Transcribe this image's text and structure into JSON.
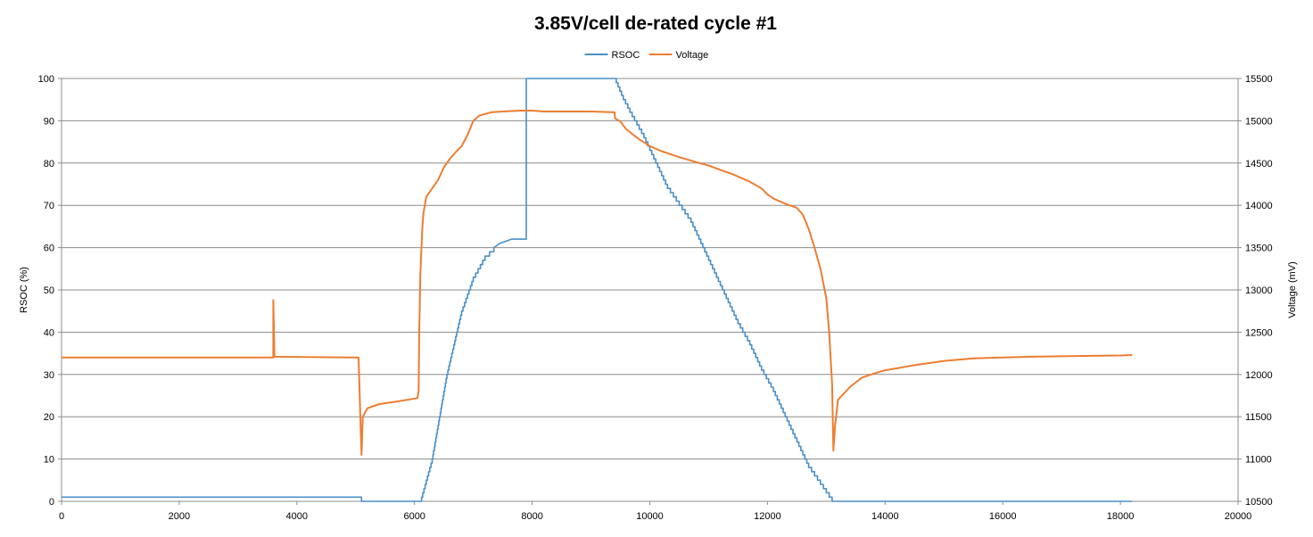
{
  "chart_data": {
    "type": "line",
    "title": "3.85V/cell de-rated cycle #1",
    "xlabel": "",
    "ylabel": "RSOC (%)",
    "y2label": "Voltage (mV)",
    "xlim": [
      0,
      20000
    ],
    "ylim": [
      0,
      100
    ],
    "y2lim": [
      10500,
      15500
    ],
    "x_ticks": [
      "0",
      "2000",
      "4000",
      "6000",
      "8000",
      "10000",
      "12000",
      "14000",
      "16000",
      "18000",
      "20000"
    ],
    "y_ticks": [
      "0",
      "10",
      "20",
      "30",
      "40",
      "50",
      "60",
      "70",
      "80",
      "90",
      "100"
    ],
    "y2_ticks": [
      "10500",
      "11000",
      "11500",
      "12000",
      "12500",
      "13000",
      "13500",
      "14000",
      "14500",
      "15000",
      "15500"
    ],
    "grid": "horizontal",
    "legend_position": "top-center",
    "series": [
      {
        "name": "RSOC",
        "axis": "left",
        "color": "#4a90c8",
        "step": true,
        "points": [
          [
            0,
            1
          ],
          [
            5100,
            1
          ],
          [
            5100,
            0
          ],
          [
            6100,
            0
          ],
          [
            6300,
            10
          ],
          [
            6550,
            30
          ],
          [
            6800,
            45
          ],
          [
            7000,
            53
          ],
          [
            7200,
            58
          ],
          [
            7350,
            60
          ],
          [
            7450,
            61
          ],
          [
            7650,
            62
          ],
          [
            7900,
            62
          ],
          [
            7900,
            100
          ],
          [
            9400,
            100
          ],
          [
            9550,
            95
          ],
          [
            9700,
            91
          ],
          [
            9900,
            86
          ],
          [
            10100,
            80
          ],
          [
            10300,
            74
          ],
          [
            10500,
            70
          ],
          [
            10700,
            66
          ],
          [
            10900,
            60
          ],
          [
            11100,
            54
          ],
          [
            11300,
            48
          ],
          [
            11500,
            42
          ],
          [
            11700,
            37
          ],
          [
            11900,
            31
          ],
          [
            12100,
            26
          ],
          [
            12300,
            20
          ],
          [
            12500,
            14
          ],
          [
            12700,
            8
          ],
          [
            12900,
            4
          ],
          [
            13100,
            0
          ],
          [
            18200,
            0
          ]
        ]
      },
      {
        "name": "Voltage",
        "axis": "right",
        "color": "#ed7d31",
        "step": false,
        "points": [
          [
            0,
            12200
          ],
          [
            3600,
            12200
          ],
          [
            3600,
            12880
          ],
          [
            3620,
            12210
          ],
          [
            5000,
            12200
          ],
          [
            5050,
            12200
          ],
          [
            5070,
            11700
          ],
          [
            5100,
            11050
          ],
          [
            5120,
            11500
          ],
          [
            5200,
            11600
          ],
          [
            5400,
            11650
          ],
          [
            5700,
            11680
          ],
          [
            6050,
            11720
          ],
          [
            6070,
            11800
          ],
          [
            6080,
            12500
          ],
          [
            6100,
            13200
          ],
          [
            6130,
            13700
          ],
          [
            6150,
            13900
          ],
          [
            6200,
            14100
          ],
          [
            6300,
            14200
          ],
          [
            6400,
            14300
          ],
          [
            6500,
            14450
          ],
          [
            6600,
            14550
          ],
          [
            6700,
            14630
          ],
          [
            6800,
            14700
          ],
          [
            6900,
            14830
          ],
          [
            7000,
            15000
          ],
          [
            7100,
            15060
          ],
          [
            7300,
            15100
          ],
          [
            7500,
            15110
          ],
          [
            7800,
            15120
          ],
          [
            8000,
            15120
          ],
          [
            8200,
            15110
          ],
          [
            9000,
            15110
          ],
          [
            9400,
            15100
          ],
          [
            9410,
            15030
          ],
          [
            9500,
            14990
          ],
          [
            9600,
            14900
          ],
          [
            9800,
            14790
          ],
          [
            10000,
            14700
          ],
          [
            10200,
            14640
          ],
          [
            10500,
            14570
          ],
          [
            10800,
            14510
          ],
          [
            11000,
            14470
          ],
          [
            11200,
            14420
          ],
          [
            11400,
            14370
          ],
          [
            11700,
            14280
          ],
          [
            11900,
            14200
          ],
          [
            12000,
            14130
          ],
          [
            12100,
            14080
          ],
          [
            12300,
            14020
          ],
          [
            12500,
            13970
          ],
          [
            12600,
            13890
          ],
          [
            12700,
            13720
          ],
          [
            12800,
            13500
          ],
          [
            12900,
            13250
          ],
          [
            13000,
            12900
          ],
          [
            13050,
            12500
          ],
          [
            13100,
            11880
          ],
          [
            13120,
            11100
          ],
          [
            13150,
            11400
          ],
          [
            13200,
            11700
          ],
          [
            13400,
            11850
          ],
          [
            13600,
            11960
          ],
          [
            13800,
            12010
          ],
          [
            14000,
            12050
          ],
          [
            14500,
            12110
          ],
          [
            15000,
            12160
          ],
          [
            15500,
            12190
          ],
          [
            16000,
            12200
          ],
          [
            16500,
            12210
          ],
          [
            17000,
            12215
          ],
          [
            17500,
            12220
          ],
          [
            18000,
            12225
          ],
          [
            18200,
            12230
          ]
        ]
      }
    ]
  }
}
